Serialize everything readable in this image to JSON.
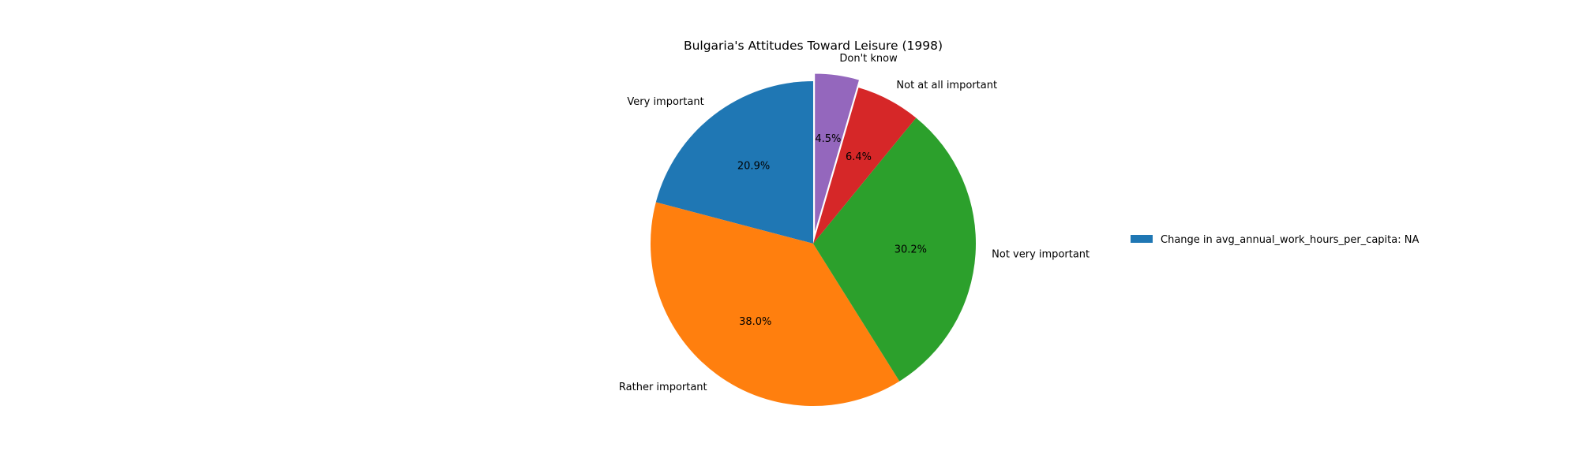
{
  "chart_data": {
    "type": "pie",
    "title": "Bulgaria's Attitudes Toward Leisure (1998)",
    "slices": [
      {
        "label": "Very important",
        "percent": 20.9,
        "percent_text": "20.9%",
        "color": "#1f77b4",
        "exploded": false
      },
      {
        "label": "Rather important",
        "percent": 38.0,
        "percent_text": "38.0%",
        "color": "#ff7f0e",
        "exploded": false
      },
      {
        "label": "Not very important",
        "percent": 30.2,
        "percent_text": "30.2%",
        "color": "#2ca02c",
        "exploded": false
      },
      {
        "label": "Not at all important",
        "percent": 6.4,
        "percent_text": "6.4%",
        "color": "#d62728",
        "exploded": false
      },
      {
        "label": "Don't know",
        "percent": 4.5,
        "percent_text": "4.5%",
        "color": "#9467bd",
        "exploded": true
      }
    ],
    "start": "top",
    "direction": "counterclockwise",
    "legend": {
      "placement": "right",
      "entries": [
        {
          "label": "Change in avg_annual_work_hours_per_capita: NA",
          "color": "#1f77b4"
        }
      ]
    }
  }
}
